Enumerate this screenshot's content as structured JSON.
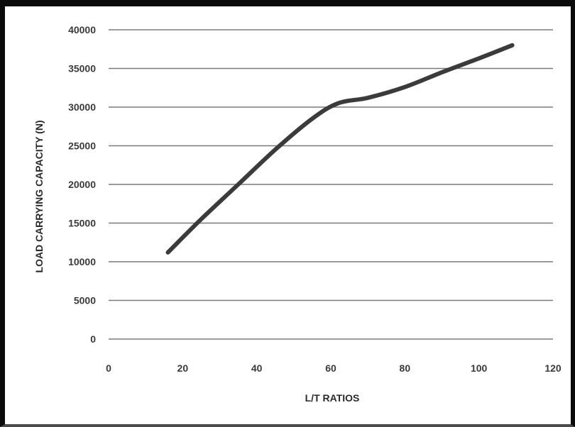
{
  "chart_data": {
    "type": "line",
    "title": "",
    "xlabel": "L/T RATIOS",
    "ylabel": "LOAD CARRYING CAPACITY (N)",
    "xlim": [
      0,
      120
    ],
    "ylim": [
      0,
      40000
    ],
    "x_ticks": [
      0,
      20,
      40,
      60,
      80,
      100,
      120
    ],
    "y_ticks": [
      0,
      5000,
      10000,
      15000,
      20000,
      25000,
      30000,
      35000,
      40000
    ],
    "grid": {
      "horizontal": true,
      "vertical": false
    },
    "legend": "none",
    "series": [
      {
        "x": [
          16,
          25,
          35,
          45,
          55,
          62,
          70,
          80,
          90,
          100,
          109
        ],
        "y": [
          11200,
          15500,
          20000,
          24500,
          28500,
          30500,
          31200,
          32600,
          34500,
          36300,
          38000
        ],
        "color": "#3b3b3b"
      }
    ],
    "colors": {
      "line": "#3b3b3b",
      "grid": "#7a7a7a",
      "frame": "#0b0b0b"
    }
  }
}
